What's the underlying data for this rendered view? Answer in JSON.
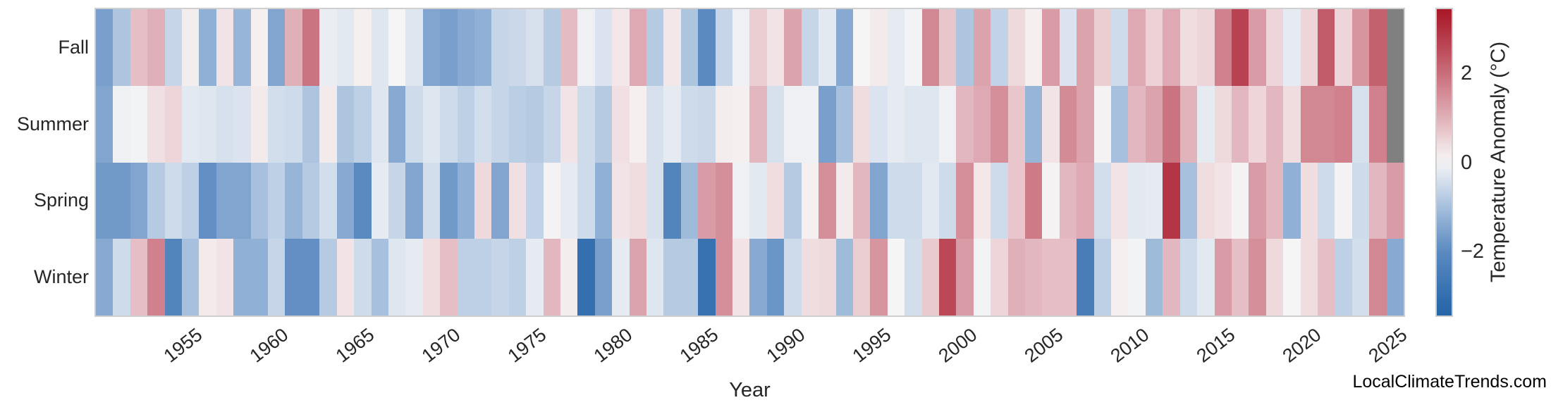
{
  "chart_data": {
    "type": "heatmap",
    "title": "",
    "xlabel": "Year",
    "years": {
      "start": 1950,
      "end": 2025
    },
    "xticks": [
      "1955",
      "1960",
      "1965",
      "1970",
      "1975",
      "1980",
      "1985",
      "1990",
      "1995",
      "2000",
      "2005",
      "2010",
      "2015",
      "2020",
      "2025"
    ],
    "rows": [
      "Fall",
      "Summer",
      "Spring",
      "Winter"
    ],
    "series": [
      {
        "name": "Fall",
        "values": [
          -1.6,
          -0.9,
          0.8,
          1.0,
          -0.6,
          0.15,
          -1.3,
          0.3,
          -1.2,
          0.1,
          -1.5,
          1.0,
          1.9,
          -0.15,
          -0.25,
          0.1,
          -0.3,
          0.0,
          -0.3,
          -1.5,
          -1.6,
          -1.4,
          -1.3,
          -0.6,
          -0.55,
          -0.4,
          -0.8,
          0.85,
          -0.1,
          -0.35,
          0.25,
          1.1,
          -0.8,
          0.25,
          -0.9,
          -2.0,
          -0.6,
          -0.1,
          0.6,
          0.3,
          1.2,
          -0.6,
          -0.25,
          -1.4,
          0.0,
          0.2,
          -0.2,
          -0.05,
          1.6,
          0.7,
          -0.9,
          1.2,
          -0.65,
          0.45,
          0.1,
          1.3,
          -0.35,
          1.2,
          0.6,
          -0.5,
          1.1,
          0.55,
          1.1,
          0.4,
          0.5,
          1.7,
          2.7,
          1.3,
          0.5,
          -0.2,
          0.5,
          2.3,
          0.5,
          1.4,
          2.2,
          null
        ]
      },
      {
        "name": "Summer",
        "values": [
          -1.5,
          -0.1,
          -0.05,
          0.35,
          0.5,
          -0.25,
          -0.3,
          -0.4,
          -0.35,
          0.2,
          -0.45,
          -0.5,
          -0.9,
          0.2,
          -0.9,
          -0.7,
          -0.3,
          -1.4,
          -0.5,
          -0.3,
          -0.5,
          -0.7,
          -0.45,
          -0.6,
          -0.75,
          -0.8,
          -0.6,
          0.3,
          -0.5,
          -0.8,
          0.35,
          0.1,
          -0.4,
          -0.2,
          -0.5,
          -0.55,
          0.15,
          0.1,
          0.9,
          -0.4,
          -0.1,
          -0.1,
          -1.6,
          -1.0,
          0.4,
          -0.35,
          -0.2,
          -0.3,
          -0.3,
          -0.1,
          0.9,
          1.1,
          1.5,
          0.7,
          -1.2,
          0.3,
          1.55,
          1.2,
          0.05,
          -1.0,
          0.9,
          1.2,
          1.9,
          0.95,
          -0.2,
          0.45,
          0.9,
          0.5,
          0.9,
          0.4,
          1.6,
          1.6,
          1.7,
          -0.4,
          1.7,
          null
        ]
      },
      {
        "name": "Spring",
        "values": [
          -1.7,
          -1.7,
          -1.5,
          -0.8,
          -0.5,
          -0.7,
          -1.9,
          -1.5,
          -1.5,
          -1.0,
          -0.7,
          -1.2,
          -0.8,
          -0.45,
          -1.4,
          -2.0,
          -0.2,
          -0.6,
          -1.5,
          -0.45,
          -1.7,
          -1.3,
          0.45,
          -1.5,
          0.35,
          -0.65,
          0.05,
          -0.2,
          -0.5,
          -1.3,
          0.3,
          0.4,
          -0.4,
          -2.2,
          -1.1,
          1.3,
          1.5,
          -0.1,
          -0.25,
          0.4,
          -0.8,
          0.1,
          1.5,
          0.2,
          0.9,
          -1.5,
          -0.5,
          -0.5,
          -0.25,
          -0.5,
          1.5,
          0.25,
          -0.5,
          0.7,
          1.8,
          0.05,
          0.9,
          1.1,
          -0.45,
          0.3,
          -0.25,
          -0.2,
          2.9,
          -1.0,
          0.4,
          0.3,
          0.05,
          1.3,
          0.9,
          -1.3,
          0.4,
          -0.5,
          0.05,
          -0.5,
          0.9,
          1.3
        ]
      },
      {
        "name": "Winter",
        "values": [
          -1.4,
          -0.5,
          0.8,
          1.7,
          -2.2,
          -1.0,
          0.2,
          0.3,
          -1.3,
          -1.3,
          -0.6,
          -1.9,
          -1.9,
          -0.8,
          0.3,
          -0.5,
          -1.0,
          -0.3,
          -0.2,
          0.4,
          0.8,
          -0.7,
          -0.7,
          -0.6,
          -0.7,
          -0.2,
          0.9,
          0.15,
          -3.0,
          -1.6,
          -0.2,
          1.2,
          -0.3,
          -0.8,
          -0.8,
          -2.9,
          1.5,
          0.3,
          -1.4,
          -1.8,
          -0.5,
          0.4,
          0.45,
          -1.1,
          0.6,
          1.4,
          0.0,
          -0.45,
          0.65,
          2.6,
          1.3,
          -0.05,
          0.5,
          1.0,
          0.9,
          0.8,
          0.8,
          -2.5,
          -0.7,
          0.1,
          -0.05,
          -1.1,
          0.9,
          -0.5,
          -0.25,
          1.3,
          0.8,
          1.5,
          0.45,
          0.0,
          0.4,
          0.8,
          -0.7,
          -0.45,
          1.6,
          -1.4
        ]
      }
    ],
    "colorbar": {
      "label": "Temperature Anomaly (°C)",
      "ticks": [
        "2",
        "0",
        "−2"
      ],
      "tick_values": [
        2,
        0,
        -2
      ],
      "vmin": -3.45,
      "vmax": 3.45
    },
    "colors": {
      "strong_blue": "#2565a8",
      "medium_blue": "#5b8ac1",
      "light_blue": "#a6c0dd",
      "pale_blue": "#dee6f0",
      "white": "#f6f5f5",
      "pale_pink": "#f2e4e6",
      "dusty_pink": "#e0b0b8",
      "rose": "#c96d7b",
      "dark_red": "#a91728",
      "missing": "#808080"
    },
    "watermark": "LocalClimateTrends.com"
  }
}
